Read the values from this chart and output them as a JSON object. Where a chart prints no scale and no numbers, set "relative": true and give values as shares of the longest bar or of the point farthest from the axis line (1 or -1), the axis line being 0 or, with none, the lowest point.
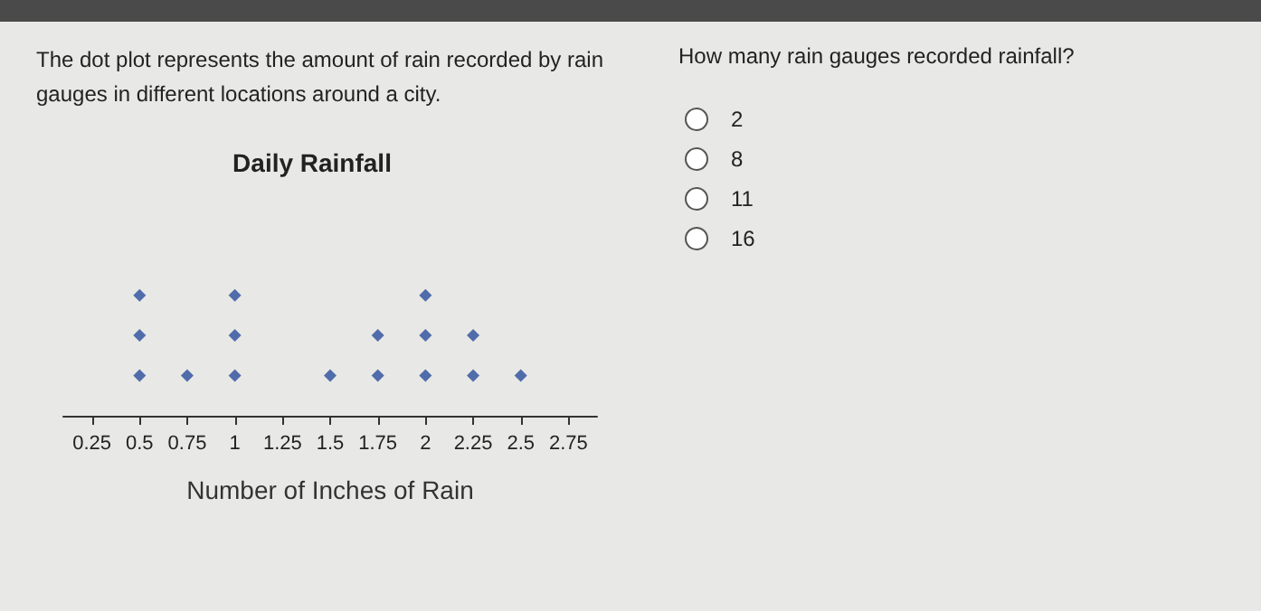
{
  "chart_data": {
    "type": "scatter",
    "title": "Daily Rainfall",
    "xlabel": "Number of Inches of Rain",
    "annotations": [
      "The dot plot represents the amount of rain recorded by rain gauges in different locations around a city.",
      "How many rain gauges recorded rainfall?",
      "2",
      "8",
      "11",
      "16"
    ],
    "relative": true,
    "tick_labels": "x",
    "marker": "diamond",
    "series": [
      {
        "color": "#2b4c9b",
        "x": [
          0.5,
          0.5,
          0.5,
          0.75,
          1,
          1,
          1,
          1.5,
          1.75,
          1.75,
          2,
          2,
          2,
          2.25,
          2.25,
          2.5
        ],
        "values": [
          0.333,
          0.667,
          1,
          0.333,
          0.333,
          0.667,
          1,
          0.333,
          0.333,
          0.667,
          0.333,
          0.667,
          1,
          0.333,
          0.667,
          0.333
        ]
      }
    ],
    "xlim": [
      0.1,
      2.9
    ],
    "xticks": [
      0.25,
      0.5,
      0.75,
      1,
      1.25,
      1.5,
      1.75,
      2,
      2.25,
      2.5,
      2.75
    ]
  }
}
